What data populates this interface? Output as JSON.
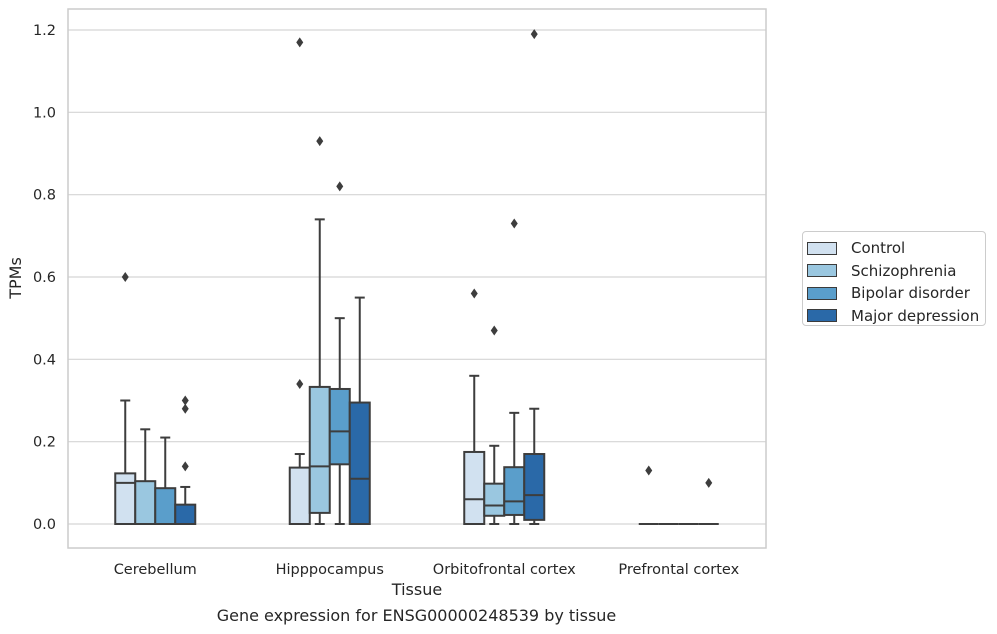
{
  "chart_data": {
    "type": "box",
    "title": "",
    "xlabel": "Tissue",
    "ylabel": "TPMs",
    "caption": "Gene expression for ENSG00000248539 by tissue",
    "categories": [
      "Cerebellum",
      "Hipppocampus",
      "Orbitofrontal cortex",
      "Prefrontal cortex"
    ],
    "ylim": [
      -0.058,
      1.25
    ],
    "yticks": [
      0.0,
      0.2,
      0.4,
      0.6,
      0.8,
      1.0,
      1.2
    ],
    "ytick_labels": [
      "0.0",
      "0.2",
      "0.4",
      "0.6",
      "0.8",
      "1.0",
      "1.2"
    ],
    "grid": "horizontal",
    "legend_position": "right",
    "series": [
      {
        "name": "Control",
        "color": "#d1e1f0",
        "boxes": [
          {
            "category": "Cerebellum",
            "whislo": 0.0,
            "q1": 0.0,
            "med": 0.1,
            "q3": 0.123,
            "whishi": 0.3,
            "fliers": [
              0.6
            ]
          },
          {
            "category": "Hipppocampus",
            "whislo": 0.0,
            "q1": 0.0,
            "med": 0.0,
            "q3": 0.137,
            "whishi": 0.17,
            "fliers": [
              0.34,
              1.17
            ]
          },
          {
            "category": "Orbitofrontal cortex",
            "whislo": 0.0,
            "q1": 0.0,
            "med": 0.06,
            "q3": 0.175,
            "whishi": 0.36,
            "fliers": [
              0.56
            ]
          },
          {
            "category": "Prefrontal cortex",
            "whislo": 0.0,
            "q1": 0.0,
            "med": 0.0,
            "q3": 0.0,
            "whishi": 0.0,
            "fliers": [
              0.13
            ]
          }
        ]
      },
      {
        "name": "Schizophrenia",
        "color": "#9ac7e0",
        "boxes": [
          {
            "category": "Cerebellum",
            "whislo": 0.0,
            "q1": 0.0,
            "med": 0.0,
            "q3": 0.104,
            "whishi": 0.23,
            "fliers": []
          },
          {
            "category": "Hipppocampus",
            "whislo": 0.0,
            "q1": 0.027,
            "med": 0.14,
            "q3": 0.333,
            "whishi": 0.74,
            "fliers": [
              0.93
            ]
          },
          {
            "category": "Orbitofrontal cortex",
            "whislo": 0.0,
            "q1": 0.02,
            "med": 0.045,
            "q3": 0.098,
            "whishi": 0.19,
            "fliers": [
              0.47
            ]
          },
          {
            "category": "Prefrontal cortex",
            "whislo": 0.0,
            "q1": 0.0,
            "med": 0.0,
            "q3": 0.0,
            "whishi": 0.0,
            "fliers": []
          }
        ]
      },
      {
        "name": "Bipolar disorder",
        "color": "#5a9ecb",
        "boxes": [
          {
            "category": "Cerebellum",
            "whislo": 0.0,
            "q1": 0.0,
            "med": 0.0,
            "q3": 0.087,
            "whishi": 0.21,
            "fliers": []
          },
          {
            "category": "Hipppocampus",
            "whislo": 0.0,
            "q1": 0.145,
            "med": 0.225,
            "q3": 0.328,
            "whishi": 0.5,
            "fliers": [
              0.82
            ]
          },
          {
            "category": "Orbitofrontal cortex",
            "whislo": 0.0,
            "q1": 0.022,
            "med": 0.055,
            "q3": 0.138,
            "whishi": 0.27,
            "fliers": [
              0.73
            ]
          },
          {
            "category": "Prefrontal cortex",
            "whislo": 0.0,
            "q1": 0.0,
            "med": 0.0,
            "q3": 0.0,
            "whishi": 0.0,
            "fliers": []
          }
        ]
      },
      {
        "name": "Major depression",
        "color": "#2a69a8",
        "boxes": [
          {
            "category": "Cerebellum",
            "whislo": 0.0,
            "q1": 0.0,
            "med": 0.0,
            "q3": 0.047,
            "whishi": 0.09,
            "fliers": [
              0.14,
              0.28,
              0.3
            ]
          },
          {
            "category": "Hipppocampus",
            "whislo": 0.0,
            "q1": 0.0,
            "med": 0.11,
            "q3": 0.295,
            "whishi": 0.55,
            "fliers": []
          },
          {
            "category": "Orbitofrontal cortex",
            "whislo": 0.0,
            "q1": 0.01,
            "med": 0.07,
            "q3": 0.17,
            "whishi": 0.28,
            "fliers": [
              1.19
            ]
          },
          {
            "category": "Prefrontal cortex",
            "whislo": 0.0,
            "q1": 0.0,
            "med": 0.0,
            "q3": 0.0,
            "whishi": 0.0,
            "fliers": [
              0.1
            ]
          }
        ]
      }
    ]
  }
}
